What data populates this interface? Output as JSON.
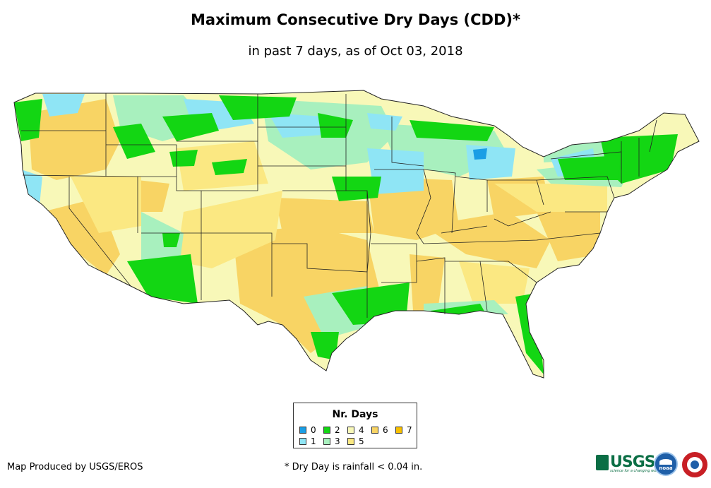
{
  "title": "Maximum Consecutive Dry Days (CDD)*",
  "subtitle": "in past 7 days, as of Oct 03, 2018",
  "legend": {
    "title": "Nr. Days",
    "items": [
      {
        "label": "0",
        "color": "#1a9ee5"
      },
      {
        "label": "1",
        "color": "#8fe5f5"
      },
      {
        "label": "2",
        "color": "#13d613"
      },
      {
        "label": "3",
        "color": "#a8f0be"
      },
      {
        "label": "4",
        "color": "#f8f8b8"
      },
      {
        "label": "5",
        "color": "#fbe882"
      },
      {
        "label": "6",
        "color": "#f8d464"
      },
      {
        "label": "7",
        "color": "#f8c000"
      }
    ]
  },
  "footer": {
    "produced_by": "Map Produced by USGS/EROS",
    "footnote": "* Dry Day is rainfall < 0.04 in."
  },
  "logos": {
    "usgs": "USGS",
    "usgs_tagline": "science for a changing world",
    "noaa": "noaa"
  }
}
